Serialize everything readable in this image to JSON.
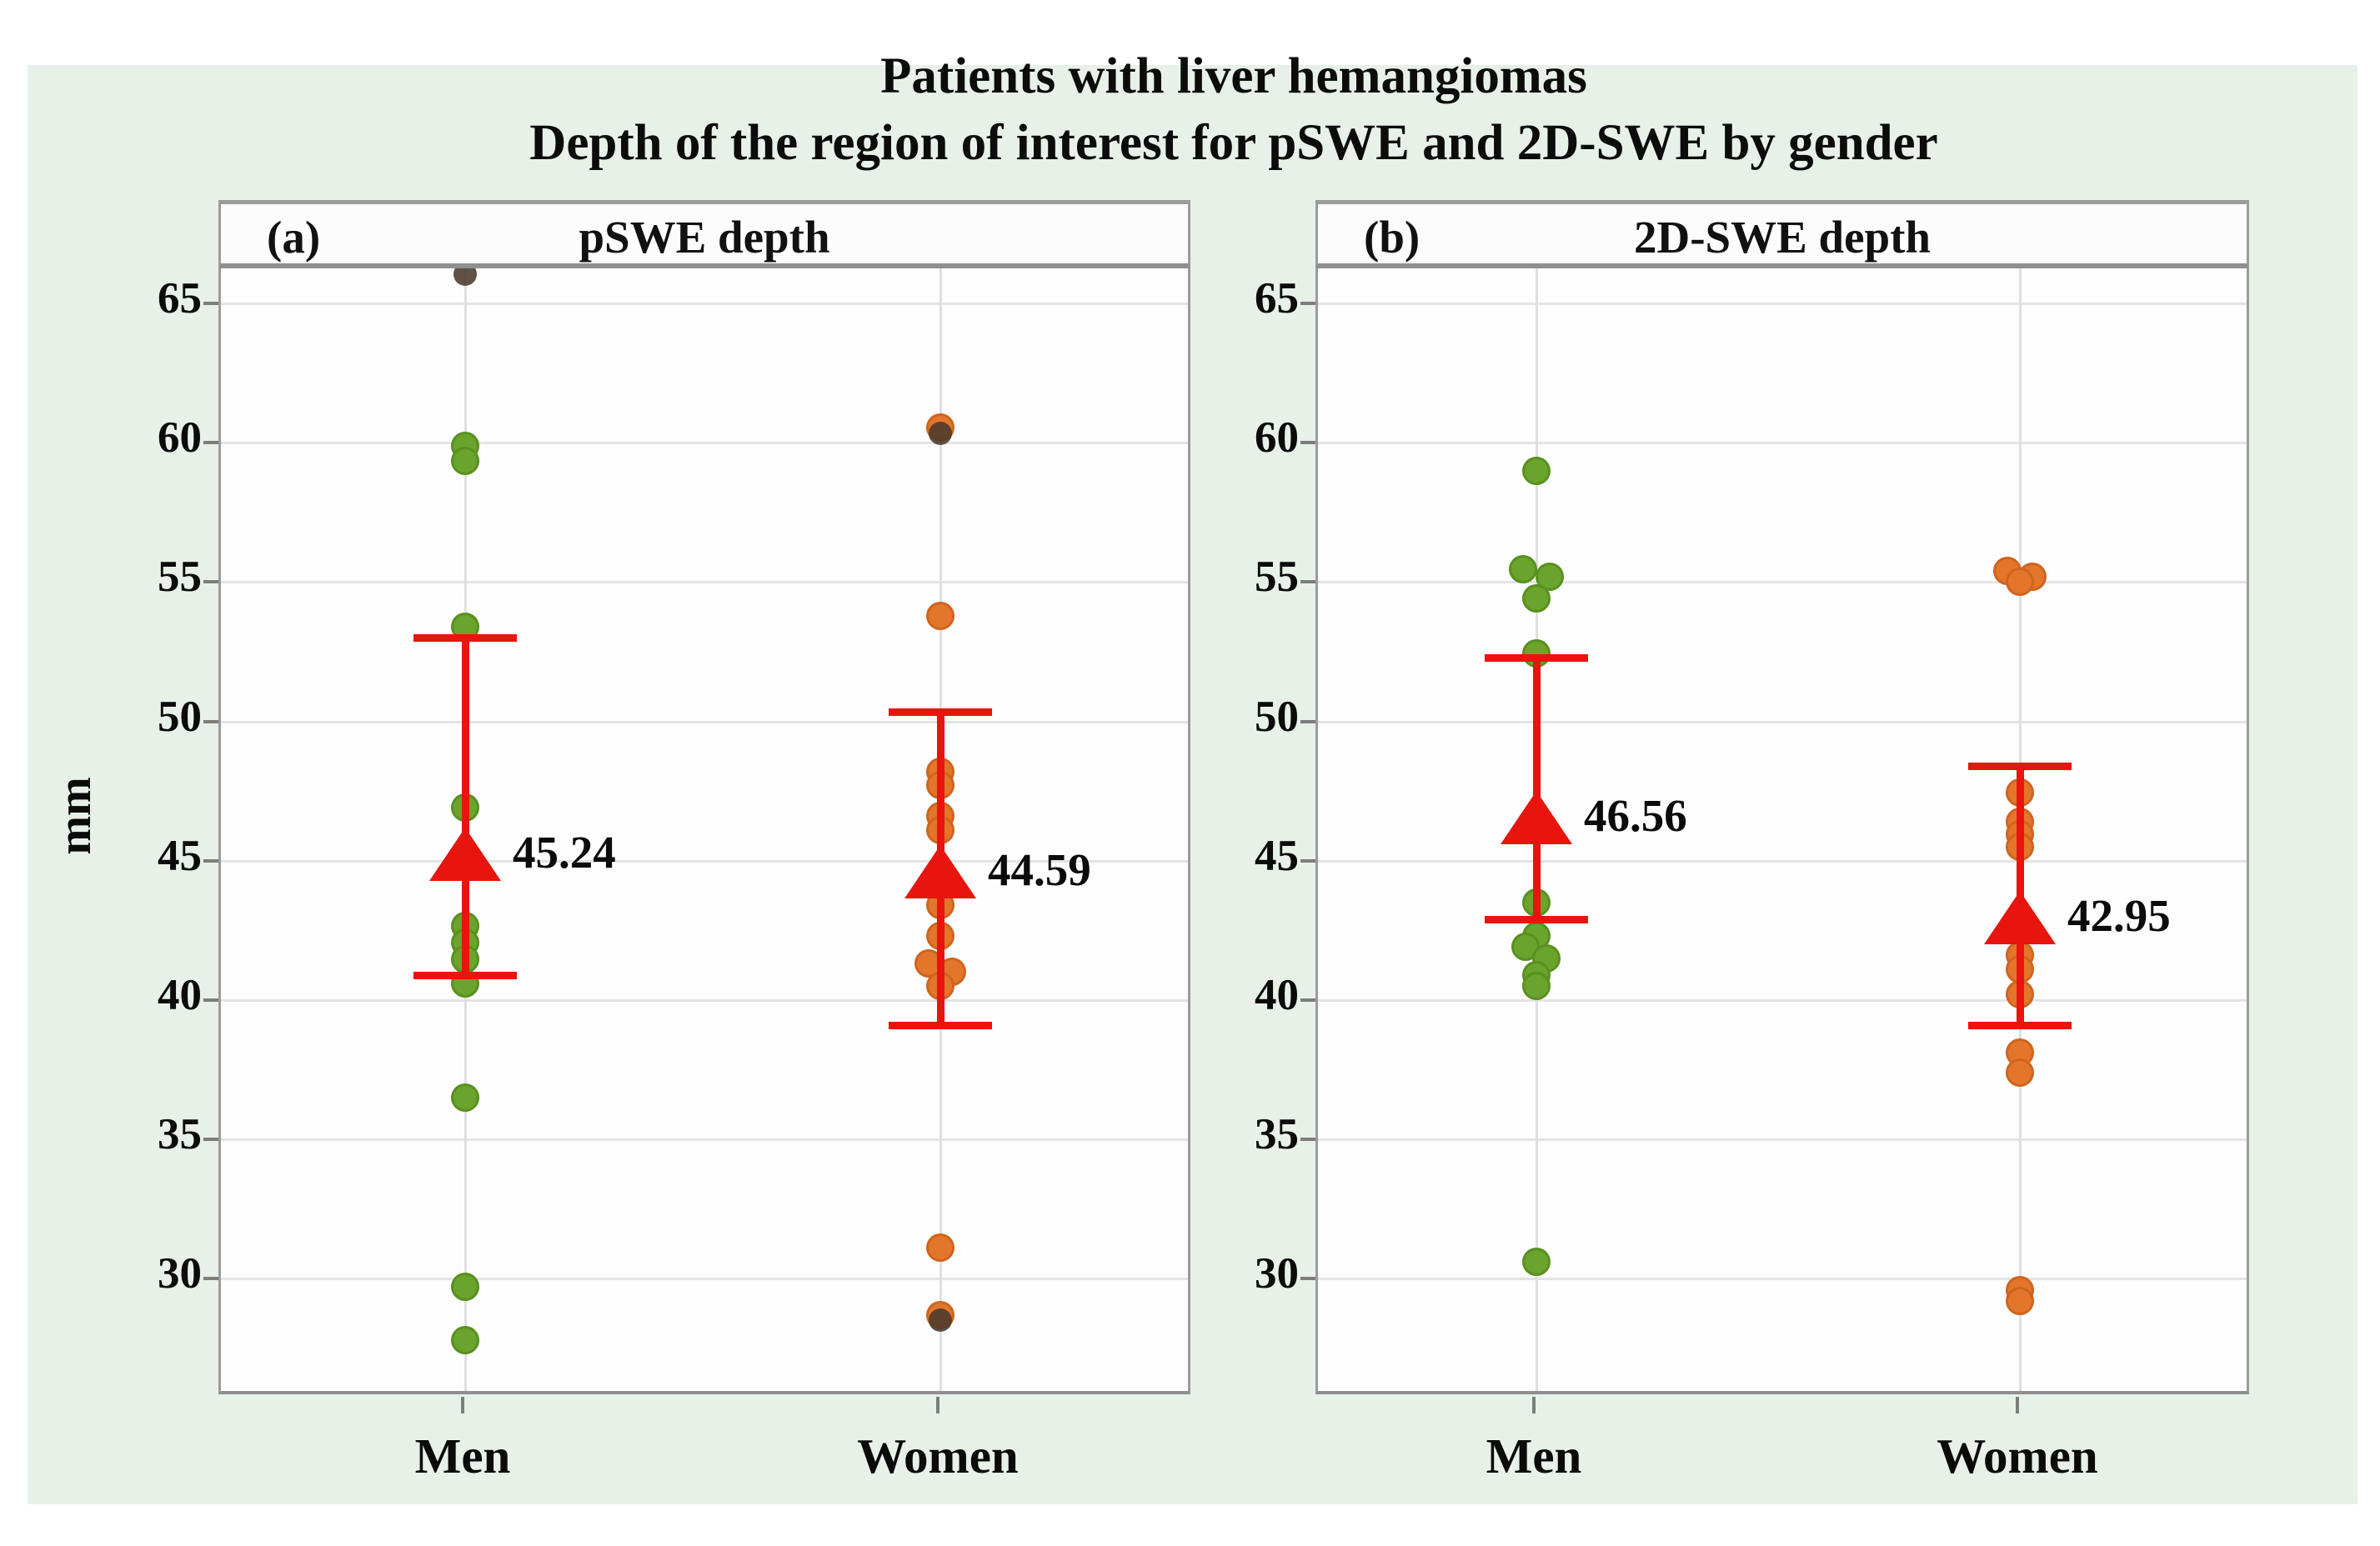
{
  "title": {
    "line1": "Patients with liver hemangiomas",
    "line2": "Depth of the region of interest for pSWE and 2D-SWE by gender"
  },
  "y_axis": {
    "label": "mm",
    "tick_labels": [
      "65",
      "60",
      "55",
      "50",
      "45",
      "40",
      "35",
      "30"
    ]
  },
  "x_categories": [
    "Men",
    "Women"
  ],
  "colors": {
    "background": "#e7f1e8",
    "panel_bg": "#fdfdfd",
    "men_dot": "#6aa42c",
    "women_dot": "#e4762b",
    "dark_dot": "#4a3a2c",
    "mean_red": "#e8150f",
    "grid": "#e4e4e4",
    "border_gray": "#9b9b9b"
  },
  "chart_data": {
    "type": "scatter",
    "subtype": "jittered dot plot with mean and confidence interval",
    "title": "Patients with liver hemangiomas — Depth of the region of interest for pSWE and 2D-SWE by gender",
    "ylabel": "mm",
    "ylim": [
      25.8,
      66.3
    ],
    "yticks": [
      65,
      60,
      55,
      50,
      45,
      40,
      35,
      30
    ],
    "grid": true,
    "panels": [
      {
        "tag": "(a)",
        "title": "pSWE depth",
        "groups": [
          {
            "name": "Men",
            "series_color": "men",
            "mean": 45.24,
            "mean_label": "45.24",
            "ci_low": 40.9,
            "ci_high": 53.0,
            "points": [
              {
                "v": 66.05,
                "c": "dark"
              },
              {
                "v": 59.9
              },
              {
                "v": 59.35
              },
              {
                "v": 53.4
              },
              {
                "v": 46.9
              },
              {
                "v": 42.65
              },
              {
                "v": 42.05
              },
              {
                "v": 41.45
              },
              {
                "v": 40.6
              },
              {
                "v": 36.5
              },
              {
                "v": 29.7
              },
              {
                "v": 27.8
              }
            ]
          },
          {
            "name": "Women",
            "series_color": "women",
            "mean": 44.59,
            "mean_label": "44.59",
            "ci_low": 39.1,
            "ci_high": 50.35,
            "points": [
              {
                "v": 60.55
              },
              {
                "v": 60.35,
                "c": "dark"
              },
              {
                "v": 53.8
              },
              {
                "v": 48.2
              },
              {
                "v": 47.7
              },
              {
                "v": 46.6
              },
              {
                "v": 46.1
              },
              {
                "v": 43.4
              },
              {
                "v": 42.3
              },
              {
                "v": 41.3,
                "dx": -14
              },
              {
                "v": 41.0,
                "dx": 14
              },
              {
                "v": 40.5
              },
              {
                "v": 31.1
              },
              {
                "v": 28.7
              },
              {
                "v": 28.5,
                "c": "dark"
              }
            ]
          }
        ]
      },
      {
        "tag": "(b)",
        "title": "2D-SWE depth",
        "groups": [
          {
            "name": "Men",
            "series_color": "men",
            "mean": 46.56,
            "mean_label": "46.56",
            "ci_low": 42.9,
            "ci_high": 52.3,
            "points": [
              {
                "v": 59.0
              },
              {
                "v": 55.45,
                "dx": -16
              },
              {
                "v": 55.2,
                "dx": 16
              },
              {
                "v": 54.4
              },
              {
                "v": 52.45
              },
              {
                "v": 43.5
              },
              {
                "v": 42.3
              },
              {
                "v": 41.9,
                "dx": -13
              },
              {
                "v": 41.5,
                "dx": 12
              },
              {
                "v": 40.9
              },
              {
                "v": 40.5
              },
              {
                "v": 30.6
              }
            ]
          },
          {
            "name": "Women",
            "series_color": "women",
            "mean": 42.95,
            "mean_label": "42.95",
            "ci_low": 39.1,
            "ci_high": 48.4,
            "points": [
              {
                "v": 55.4,
                "dx": -15
              },
              {
                "v": 55.2,
                "dx": 15
              },
              {
                "v": 55.0
              },
              {
                "v": 47.45
              },
              {
                "v": 46.4
              },
              {
                "v": 45.95
              },
              {
                "v": 45.5
              },
              {
                "v": 41.6
              },
              {
                "v": 41.1
              },
              {
                "v": 40.2
              },
              {
                "v": 38.1
              },
              {
                "v": 37.4
              },
              {
                "v": 29.6
              },
              {
                "v": 29.2
              }
            ]
          }
        ]
      }
    ]
  }
}
